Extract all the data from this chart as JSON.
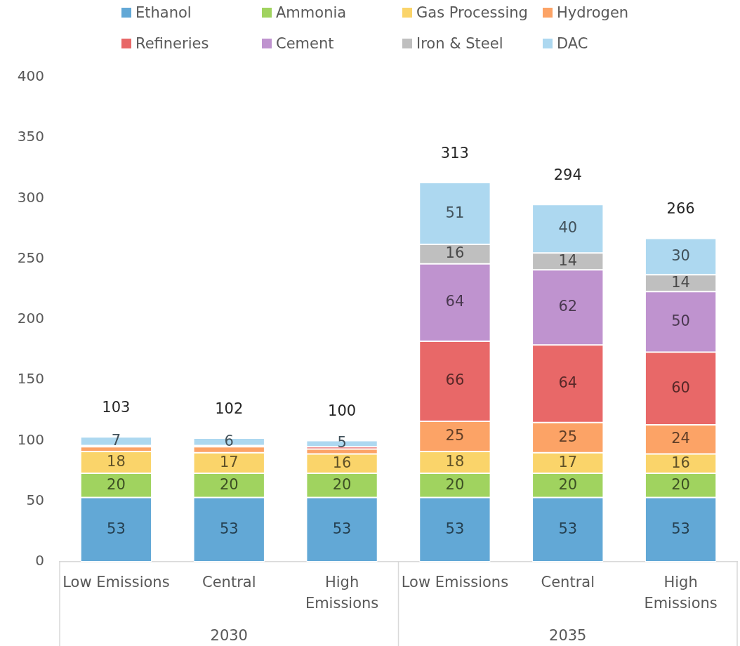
{
  "chart_data": {
    "type": "bar",
    "stacked": true,
    "categories": [
      "Low Emissions",
      "Central",
      "High Emissions",
      "Low Emissions",
      "Central",
      "High Emissions"
    ],
    "series": [
      {
        "name": "Ethanol",
        "color": "#62a8d6",
        "values": [
          53,
          53,
          53,
          53,
          53,
          53
        ],
        "value_labels": [
          "53",
          "53",
          "53",
          "53",
          "53",
          "53"
        ]
      },
      {
        "name": "Ammonia",
        "color": "#a0d35f",
        "values": [
          20,
          20,
          20,
          20,
          20,
          20
        ],
        "value_labels": [
          "20",
          "20",
          "20",
          "20",
          "20",
          "20"
        ]
      },
      {
        "name": "Gas Processing",
        "color": "#fad46a",
        "values": [
          18,
          17,
          16,
          18,
          17,
          16
        ],
        "value_labels": [
          "18",
          "17",
          "16",
          "18",
          "17",
          "16"
        ]
      },
      {
        "name": "Hydrogen",
        "color": "#fca366",
        "values": [
          4,
          5,
          4,
          25,
          25,
          24
        ],
        "value_labels": [
          null,
          null,
          null,
          "25",
          "25",
          "24"
        ]
      },
      {
        "name": "Refineries",
        "color": "#e86868",
        "values": [
          1,
          1,
          2,
          66,
          64,
          60
        ],
        "value_labels": [
          null,
          null,
          null,
          "66",
          "64",
          "60"
        ]
      },
      {
        "name": "Cement",
        "color": "#bf93cf",
        "values": [
          null,
          null,
          null,
          64,
          62,
          50
        ],
        "value_labels": [
          null,
          null,
          null,
          "64",
          "62",
          "50"
        ]
      },
      {
        "name": "Iron & Steel",
        "color": "#bfbfbf",
        "values": [
          null,
          null,
          null,
          16,
          14,
          14
        ],
        "value_labels": [
          null,
          null,
          null,
          "16",
          "14",
          "14"
        ]
      },
      {
        "name": "DAC",
        "color": "#add8f0",
        "values": [
          7,
          6,
          5,
          51,
          40,
          30
        ],
        "value_labels": [
          "7",
          "6",
          "5",
          "51",
          "40",
          "30"
        ]
      }
    ],
    "totals": [
      "103",
      "102",
      "100",
      "313",
      "294",
      "266"
    ],
    "ylim": [
      0,
      400
    ],
    "yticks": [
      0,
      50,
      100,
      150,
      200,
      250,
      300,
      350,
      400
    ],
    "legend": "top",
    "annotations": [
      "2030",
      "2035"
    ]
  }
}
